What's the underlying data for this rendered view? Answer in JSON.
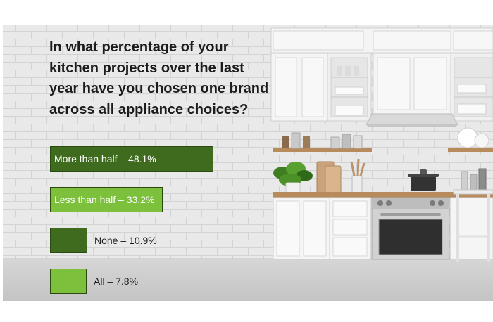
{
  "colors": {
    "dark_green": "#3e6b1d",
    "light_green": "#7cc03c"
  },
  "chart_data": {
    "type": "bar",
    "orientation": "horizontal",
    "title": "In what percentage of your kitchen projects over the last year have you chosen one brand across all appliance choices?",
    "categories": [
      "More than half",
      "Less than half",
      "None",
      "All"
    ],
    "values": [
      48.1,
      33.2,
      10.9,
      7.8
    ],
    "labels": [
      "More than half – 48.1%",
      "Less than half – 33.2%",
      "None – 10.9%",
      "All – 7.8%"
    ],
    "bar_colors": [
      "#3e6b1d",
      "#7cc03c",
      "#3e6b1d",
      "#7cc03c"
    ]
  }
}
